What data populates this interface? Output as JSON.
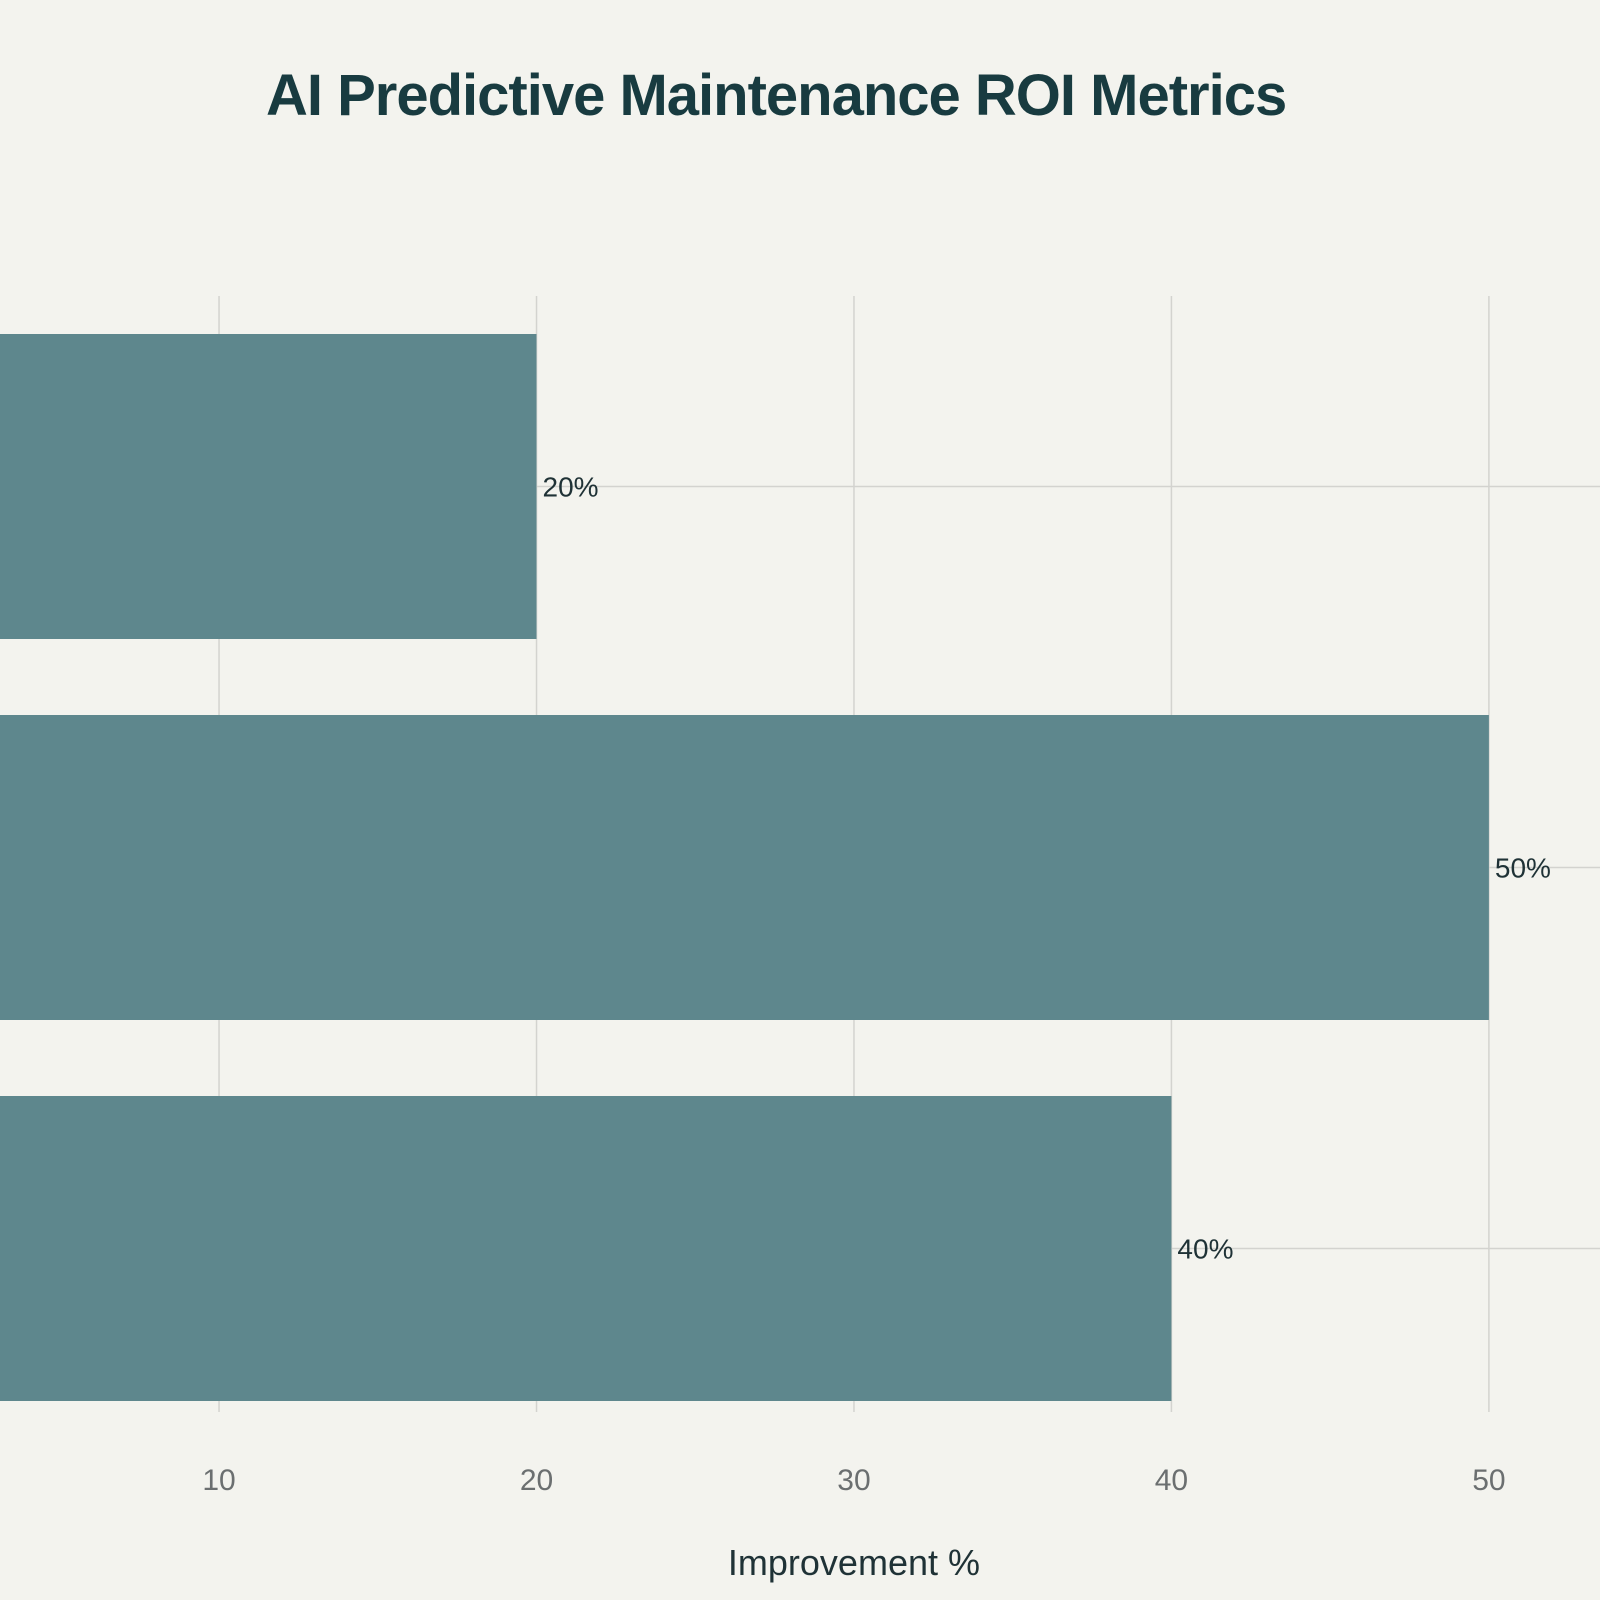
{
  "chart_data": {
    "type": "bar",
    "orientation": "horizontal",
    "title": "AI Predictive Maintenance ROI Metrics",
    "xlabel": "Improvement %",
    "ylabel": "",
    "categories": [
      "",
      "",
      ""
    ],
    "values": [
      20,
      50,
      40
    ],
    "data_labels": [
      "20%",
      "50%",
      "40%"
    ],
    "xlim": [
      3.1,
      53.5
    ],
    "xticks": [
      10,
      20,
      30,
      40,
      50
    ],
    "grid": true,
    "bar_color": "#5e878d",
    "grid_color": "#d3d3cf",
    "background": "#f3f3ee"
  }
}
